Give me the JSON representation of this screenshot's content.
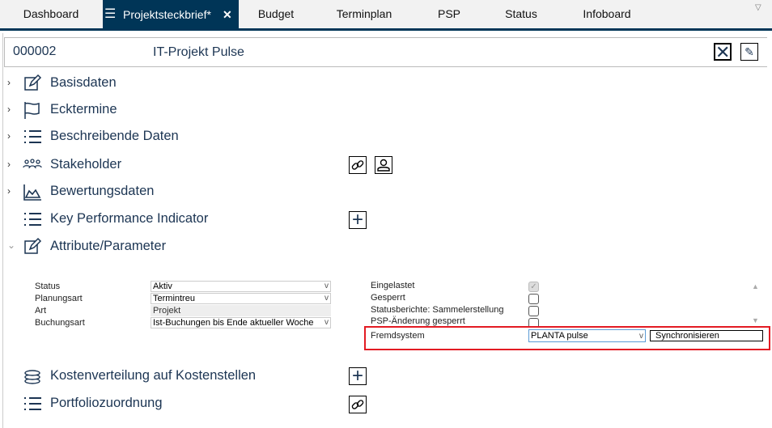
{
  "tabs": [
    {
      "label": "Dashboard"
    },
    {
      "label": "Projektsteckbrief*",
      "active": true
    },
    {
      "label": "Budget"
    },
    {
      "label": "Terminplan"
    },
    {
      "label": "PSP"
    },
    {
      "label": "Status"
    },
    {
      "label": "Infoboard"
    }
  ],
  "header": {
    "id": "000002",
    "title": "IT-Projekt Pulse"
  },
  "sections": [
    {
      "label": "Basisdaten",
      "icon": "edit-icon"
    },
    {
      "label": "Ecktermine",
      "icon": "flag-icon"
    },
    {
      "label": "Beschreibende Daten",
      "icon": "list-icon"
    },
    {
      "label": "Stakeholder",
      "icon": "people-icon"
    },
    {
      "label": "Bewertungsdaten",
      "icon": "area-chart-icon"
    },
    {
      "label": "Key Performance Indicator",
      "icon": "list-icon"
    },
    {
      "label": "Attribute/Parameter",
      "icon": "edit-icon"
    },
    {
      "label": "Kostenverteilung auf Kostenstellen",
      "icon": "coins-icon"
    },
    {
      "label": "Portfoliozuordnung",
      "icon": "list-icon"
    }
  ],
  "attributes": {
    "left": [
      {
        "label": "Status",
        "value": "Aktiv",
        "type": "select"
      },
      {
        "label": "Planungsart",
        "value": "Termintreu",
        "type": "select"
      },
      {
        "label": "Art",
        "value": "Projekt",
        "type": "readonly"
      },
      {
        "label": "Buchungsart",
        "value": "Ist-Buchungen bis Ende aktueller Woche",
        "type": "select"
      }
    ],
    "right": [
      {
        "label": "Eingelastet",
        "checked": true,
        "disabled": true
      },
      {
        "label": "Gesperrt",
        "checked": false
      },
      {
        "label": "Statusberichte: Sammelerstellung",
        "checked": false
      },
      {
        "label": "PSP-Änderung gesperrt",
        "checked": false
      }
    ],
    "fremdsystem": {
      "label": "Fremdsystem",
      "value": "PLANTA pulse",
      "button": "Synchronisieren"
    }
  },
  "colors": {
    "accent": "#003557",
    "highlight": "#e31b23"
  }
}
